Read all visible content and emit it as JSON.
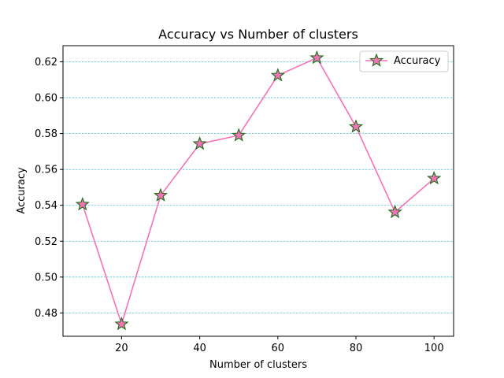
{
  "chart_data": {
    "type": "line",
    "title": "Accuracy vs Number of clusters",
    "xlabel": "Number of clusters",
    "ylabel": "Accuracy",
    "x": [
      10,
      20,
      30,
      40,
      50,
      60,
      70,
      80,
      90,
      100
    ],
    "series": [
      {
        "name": "Accuracy",
        "values": [
          0.5405,
          0.4738,
          0.5455,
          0.5743,
          0.579,
          0.6124,
          0.6222,
          0.5838,
          0.5362,
          0.555
        ],
        "line_color": "#f472b6",
        "marker": "star",
        "marker_fill": "#f472b6",
        "marker_edge": "#1a6e1a"
      }
    ],
    "xlim": [
      5,
      105
    ],
    "ylim": [
      0.467,
      0.629
    ],
    "xticks": [
      20,
      40,
      60,
      80,
      100
    ],
    "yticks": [
      0.48,
      0.5,
      0.52,
      0.54,
      0.56,
      0.58,
      0.6,
      0.62
    ],
    "ytick_labels": [
      "0.48",
      "0.50",
      "0.52",
      "0.54",
      "0.56",
      "0.58",
      "0.60",
      "0.62"
    ],
    "grid": {
      "axis": "y",
      "style": "dashed",
      "color": "#5bc0d6"
    },
    "legend": {
      "position": "top-right"
    }
  }
}
